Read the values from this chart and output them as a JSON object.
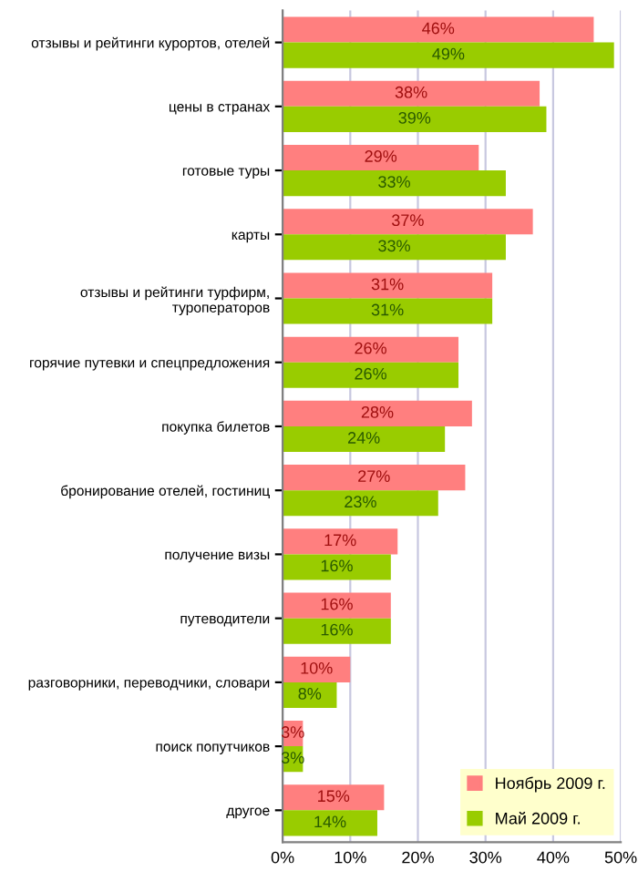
{
  "chart_data": {
    "type": "bar",
    "orientation": "horizontal",
    "categories": [
      "отзывы и рейтинги курортов, отелей",
      "цены в странах",
      "готовые туры",
      "карты",
      "отзывы и рейтинги турфирм,\nтуроператоров",
      "горячие путевки и спецпредложения",
      "покупка билетов",
      "бронирование отелей, гостиниц",
      "получение визы",
      "путеводители",
      "разговорники, переводчики, словари",
      "поиск попутчиков",
      "другое"
    ],
    "series": [
      {
        "name": "Ноябрь 2009 г.",
        "color": "#ff7f7f",
        "values": [
          46,
          38,
          29,
          37,
          31,
          26,
          28,
          27,
          17,
          16,
          10,
          3,
          15
        ],
        "value_labels": [
          "46%",
          "38%",
          "29%",
          "37%",
          "31%",
          "26%",
          "28%",
          "27%",
          "17%",
          "16%",
          "10%",
          "3%",
          "15%"
        ]
      },
      {
        "name": "Май 2009 г.",
        "color": "#99cc00",
        "values": [
          49,
          39,
          33,
          33,
          31,
          26,
          24,
          23,
          16,
          16,
          8,
          3,
          14
        ],
        "value_labels": [
          "49%",
          "39%",
          "33%",
          "33%",
          "31%",
          "26%",
          "24%",
          "23%",
          "16%",
          "16%",
          "8%",
          "3%",
          "14%"
        ]
      }
    ],
    "xlim": [
      0,
      50
    ],
    "xticks": [
      {
        "value": 0,
        "label": "0%"
      },
      {
        "value": 10,
        "label": "10%"
      },
      {
        "value": 20,
        "label": "20%"
      },
      {
        "value": 30,
        "label": "30%"
      },
      {
        "value": 40,
        "label": "40%"
      },
      {
        "value": 50,
        "label": "50%"
      }
    ],
    "grid": "x",
    "legend": "bottom right"
  }
}
